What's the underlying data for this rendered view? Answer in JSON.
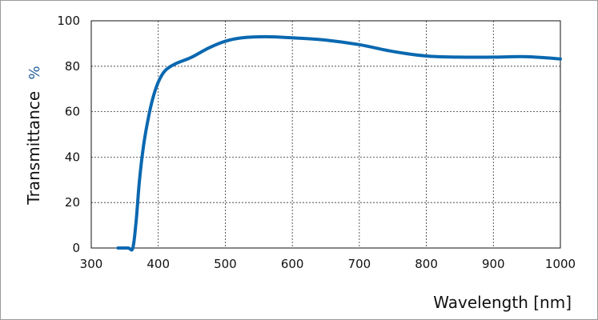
{
  "chart_data": {
    "type": "line",
    "title": "",
    "xlabel": "Wavelength [nm]",
    "ylabel": "Transmittance",
    "ylabel_unit": "%",
    "xlim": [
      300,
      1000
    ],
    "ylim": [
      0,
      100
    ],
    "x_ticks": [
      300,
      400,
      500,
      600,
      700,
      800,
      900,
      1000
    ],
    "y_ticks": [
      0,
      20,
      40,
      60,
      80,
      100
    ],
    "grid": true,
    "line_color": "#0a68b0",
    "series": [
      {
        "x": [
          340,
          355,
          362,
          367,
          372,
          378,
          385,
          392,
          400,
          410,
          425,
          450,
          475,
          500,
          525,
          560,
          600,
          650,
          700,
          750,
          800,
          850,
          900,
          950,
          1000
        ],
        "y": [
          0,
          0,
          0,
          12,
          30,
          45,
          57,
          66,
          73,
          78,
          81,
          84,
          88,
          91,
          92.5,
          93,
          92.5,
          91.5,
          89.5,
          86.5,
          84.5,
          84,
          84,
          84.2,
          83.2
        ]
      }
    ]
  }
}
